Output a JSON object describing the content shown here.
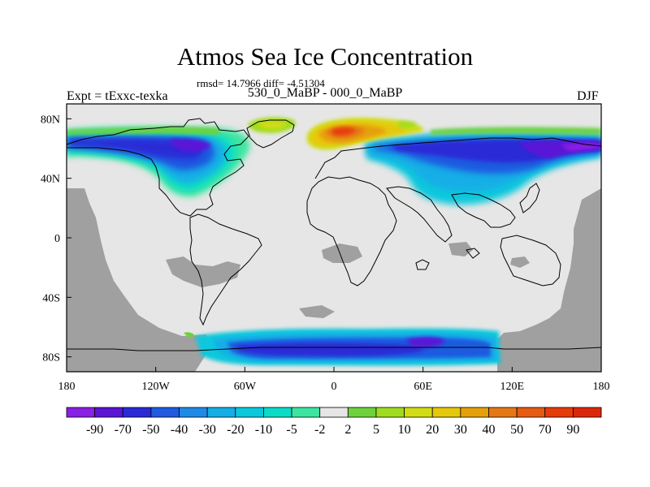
{
  "title": "Atmos Sea Ice Concentration",
  "stats_text": "rmsd= 14.7966 diff= -4.51304",
  "subtitle": "530_0_MaBP - 000_0_MaBP",
  "left_label": "Expt = tExxc-texka",
  "right_label": "DJF",
  "chart_data": {
    "type": "heatmap",
    "projection": "cylindrical-equidistant",
    "variable": "Atmos Sea Ice Concentration difference",
    "experiment": "tExxc-texka",
    "comparison": "530_0_MaBP - 000_0_MaBP",
    "season": "DJF",
    "rmsd": 14.7966,
    "diff": -4.51304,
    "xlim": [
      -180,
      180
    ],
    "ylim": [
      -90,
      90
    ],
    "x_ticks": [
      {
        "value": -180,
        "label": "180"
      },
      {
        "value": -120,
        "label": "120W"
      },
      {
        "value": -60,
        "label": "60W"
      },
      {
        "value": 0,
        "label": "0"
      },
      {
        "value": 60,
        "label": "60E"
      },
      {
        "value": 120,
        "label": "120E"
      },
      {
        "value": 180,
        "label": "180"
      }
    ],
    "y_ticks": [
      {
        "value": 80,
        "label": "80N"
      },
      {
        "value": 40,
        "label": "40N"
      },
      {
        "value": 0,
        "label": "0"
      },
      {
        "value": -40,
        "label": "40S"
      },
      {
        "value": -80,
        "label": "80S"
      }
    ],
    "colorbar": {
      "levels": [
        "-90",
        "-70",
        "-50",
        "-40",
        "-30",
        "-20",
        "-10",
        "-5",
        "-2",
        "2",
        "5",
        "10",
        "20",
        "30",
        "40",
        "50",
        "70",
        "90"
      ],
      "colors": [
        "#8a1fe6",
        "#5a14d6",
        "#2a2ad6",
        "#1f5ae0",
        "#1f8ae6",
        "#14aee6",
        "#0ac8dc",
        "#0adcc8",
        "#3ce6a0",
        "#e6e6e6",
        "#6ed23c",
        "#a0dc1e",
        "#d2dc14",
        "#e6c80a",
        "#e6a00a",
        "#e67814",
        "#e65a14",
        "#e63c0a",
        "#dc280a"
      ]
    },
    "fields": [
      {
        "name": "arctic-ice-band-west",
        "sign": "negative",
        "lon_range": [
          -180,
          -60
        ],
        "lat_range": [
          25,
          75
        ],
        "min_value": -90
      },
      {
        "name": "arctic-ice-band-east",
        "sign": "negative",
        "lon_range": [
          30,
          180
        ],
        "lat_range": [
          30,
          72
        ],
        "min_value": -90
      },
      {
        "name": "arctic-positive-patch",
        "sign": "positive",
        "lon_range": [
          -25,
          55
        ],
        "lat_range": [
          60,
          80
        ],
        "max_value": 70
      },
      {
        "name": "arctic-positive-greenland",
        "sign": "positive",
        "lon_range": [
          -50,
          -20
        ],
        "lat_range": [
          70,
          80
        ],
        "max_value": 10
      },
      {
        "name": "antarctic-ice",
        "sign": "negative",
        "lon_range": [
          -90,
          110
        ],
        "lat_range": [
          -85,
          -60
        ],
        "min_value": -90
      }
    ],
    "missing_regions": "grey land mask (530 Ma continents)",
    "overlay": "present-day coastlines"
  }
}
